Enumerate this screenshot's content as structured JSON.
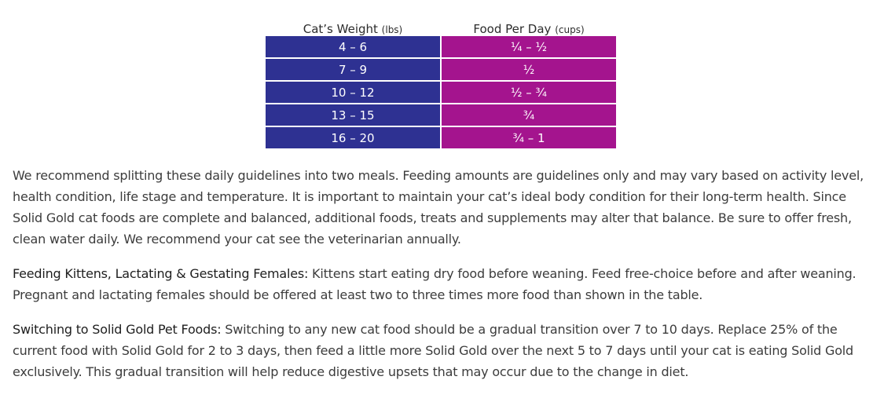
{
  "table": {
    "headers": [
      {
        "label": "Cat’s Weight",
        "unit": "(lbs)"
      },
      {
        "label": "Food Per Day",
        "unit": "(cups)"
      }
    ],
    "rows": [
      {
        "weight": "4 – 6",
        "food": "¼ – ½"
      },
      {
        "weight": "7 – 9",
        "food": "½"
      },
      {
        "weight": "10 – 12",
        "food": "½ – ¾"
      },
      {
        "weight": "13 – 15",
        "food": "¾"
      },
      {
        "weight": "16 – 20",
        "food": "¾ – 1"
      }
    ],
    "colors": {
      "weight_cell": "#2e3192",
      "food_cell": "#a4148e"
    }
  },
  "paragraphs": {
    "intro": "We recommend splitting these daily guidelines into two meals. Feeding amounts are guidelines only and may vary based on activity level, health condition, life stage and temperature. It is important to maintain your cat’s ideal body condition for their long-term health. Since Solid Gold cat foods are complete and balanced, additional foods, treats and supplements may alter that balance. Be sure to offer fresh, clean water daily. We recommend your cat see the veterinarian annually.",
    "kittens": {
      "lead": "Feeding Kittens, Lactating & Gestating Females:",
      "body": " Kittens start eating dry food before weaning. Feed free-choice before and after weaning. Pregnant and lactating females should be offered at least two to three times more food than shown in the table."
    },
    "switching": {
      "lead": "Switching to Solid Gold Pet Foods:",
      "body": " Switching to any new cat food should be a gradual transition over 7 to 10 days. Replace 25% of the current food with Solid Gold for 2 to 3 days, then feed a little more Solid Gold over the next 5 to 7 days until your cat is eating Solid Gold exclusively. This gradual transition will help reduce digestive upsets that may occur due to the change in diet."
    }
  }
}
